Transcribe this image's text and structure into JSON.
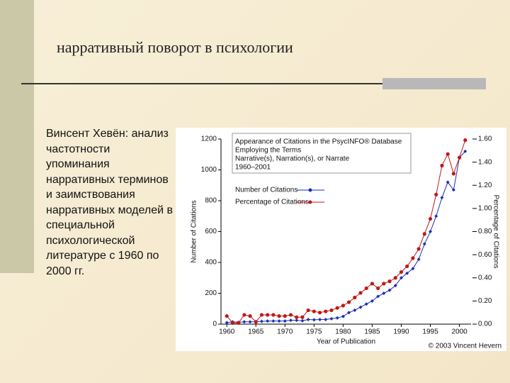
{
  "title": "нарративный поворот в психологии",
  "text": "Винсент Хевён: анализ частотности упоминания нарративных терминов и заимствования нарративных моделей в специальной психологической литературе с 1960 по 2000 гг.",
  "chart_data": {
    "type": "line",
    "title": [
      "Appearance of Citations in the PsycINFO® Database",
      "Employing the Terms",
      "Narrative(s), Narration(s), or Narrate",
      "1960–2001"
    ],
    "xlabel": "Year of Publication",
    "ylabel": "Number of Citations",
    "y2label": "Percentage of Citations",
    "credit": "© 2003 Vincent Hevern",
    "x": [
      1960,
      1961,
      1962,
      1963,
      1964,
      1965,
      1966,
      1967,
      1968,
      1969,
      1970,
      1971,
      1972,
      1973,
      1974,
      1975,
      1976,
      1977,
      1978,
      1979,
      1980,
      1981,
      1982,
      1983,
      1984,
      1985,
      1986,
      1987,
      1988,
      1989,
      1990,
      1991,
      1992,
      1993,
      1994,
      1995,
      1996,
      1997,
      1998,
      1999,
      2000,
      2001
    ],
    "xlim": [
      1959,
      2002
    ],
    "xticks": [
      1960,
      1965,
      1970,
      1975,
      1980,
      1985,
      1990,
      1995,
      2000
    ],
    "ylim": [
      0,
      1200
    ],
    "yticks": [
      0,
      200,
      400,
      600,
      800,
      1000,
      1200
    ],
    "y2lim": [
      0,
      1.6
    ],
    "y2ticks": [
      {
        "value": 0,
        "label": "0.00"
      },
      {
        "value": 0.2,
        "label": "0.20"
      },
      {
        "value": 0.4,
        "label": "0.40"
      },
      {
        "value": 0.6,
        "label": "0.60"
      },
      {
        "value": 0.8,
        "label": "0.80"
      },
      {
        "value": 1.0,
        "label": "1.00"
      },
      {
        "value": 1.2,
        "label": "1.20"
      },
      {
        "value": 1.4,
        "label": "1.40"
      },
      {
        "value": 1.6,
        "label": "1.60"
      }
    ],
    "series": [
      {
        "name": "Number of Citations",
        "color": "#1a2fb8",
        "values": [
          10,
          15,
          12,
          15,
          15,
          15,
          18,
          20,
          20,
          20,
          20,
          25,
          25,
          22,
          30,
          28,
          30,
          30,
          35,
          40,
          50,
          75,
          90,
          110,
          130,
          150,
          180,
          200,
          220,
          250,
          300,
          330,
          360,
          420,
          520,
          600,
          700,
          820,
          920,
          870,
          1080,
          1120
        ]
      },
      {
        "name": "Percentage of Citations",
        "color": "#c01818",
        "axis": "y2",
        "values": [
          0.07,
          0.01,
          0.01,
          0.08,
          0.07,
          0.02,
          0.08,
          0.08,
          0.08,
          0.07,
          0.07,
          0.08,
          0.06,
          0.06,
          0.12,
          0.11,
          0.1,
          0.11,
          0.12,
          0.14,
          0.16,
          0.19,
          0.23,
          0.27,
          0.31,
          0.35,
          0.31,
          0.35,
          0.37,
          0.4,
          0.45,
          0.5,
          0.57,
          0.65,
          0.78,
          0.91,
          1.12,
          1.37,
          1.47,
          1.3,
          1.44,
          1.59
        ]
      }
    ]
  }
}
